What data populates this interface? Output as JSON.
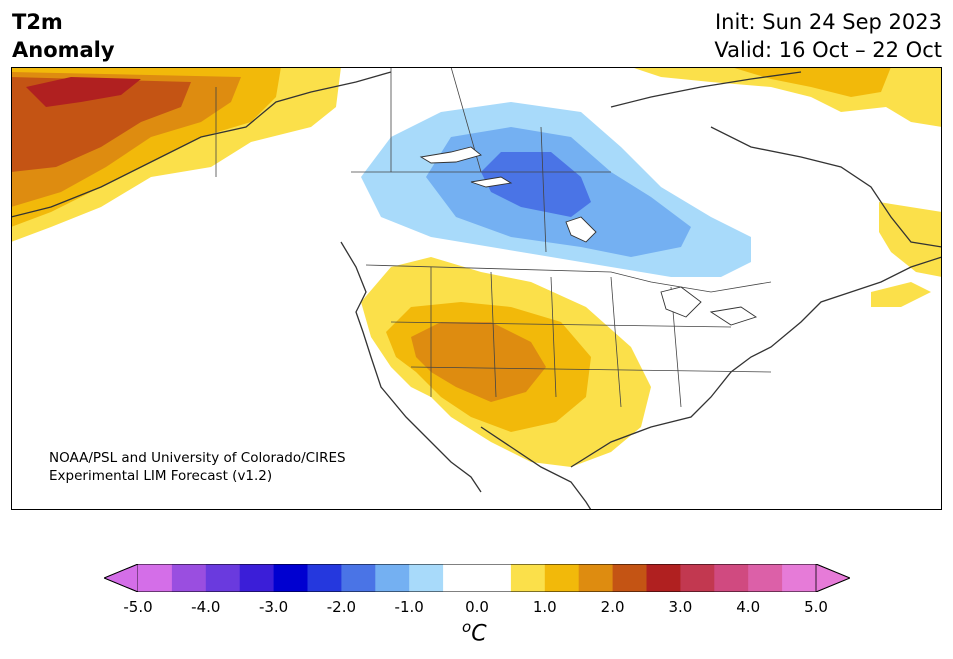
{
  "header": {
    "variable": "T2m",
    "field": "Anomaly",
    "init": "Init: Sun 24 Sep 2023",
    "valid": "Valid: 16 Oct – 22 Oct"
  },
  "credit": {
    "line1": "NOAA/PSL and University of Colorado/CIRES",
    "line2": "Experimental LIM Forecast (v1.2)"
  },
  "colorbar": {
    "unit_base": "C",
    "unit_sup": "o",
    "ticks": [
      "-5.0",
      "-4.0",
      "-3.0",
      "-2.0",
      "-1.0",
      "0.0",
      "1.0",
      "2.0",
      "3.0",
      "4.0",
      "5.0"
    ],
    "extend_low_color": "#d46ee8",
    "extend_high_color": "#e67bd8",
    "colors": [
      "#d46ee8",
      "#9a4ee0",
      "#6a3ade",
      "#3b1ed8",
      "#0000d0",
      "#2538de",
      "#4a74e6",
      "#74b0f2",
      "#a8dafa",
      "#ffffff",
      "#ffffff",
      "#fbe04a",
      "#f2b90a",
      "#de8c10",
      "#c45414",
      "#b02020",
      "#c23850",
      "#d04a80",
      "#dc60a8",
      "#e67bd8"
    ]
  },
  "map": {
    "region": "North America",
    "colors": {
      "warm_1": "#fbe04a",
      "warm_2": "#f2b90a",
      "warm_3": "#de8c10",
      "warm_4": "#c45414",
      "warm_5": "#b02020",
      "cool_1": "#a8dafa",
      "cool_2": "#74b0f2",
      "cool_3": "#4a74e6",
      "land_lines": "#333333"
    }
  }
}
